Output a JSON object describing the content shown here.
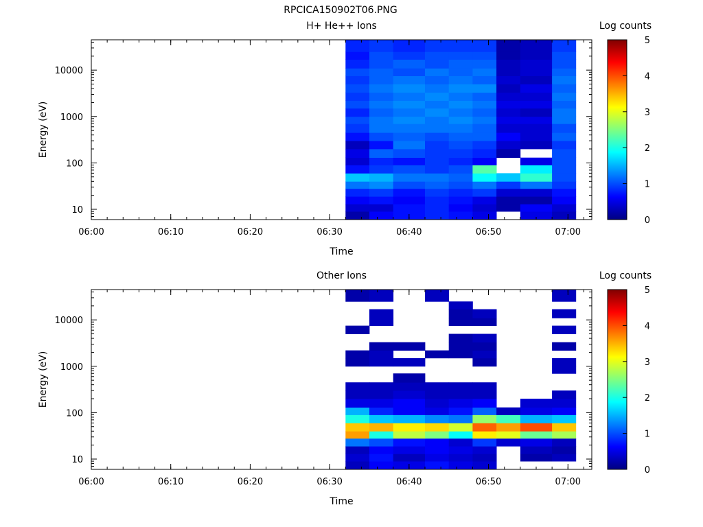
{
  "figure_title": "RPCICA150902T06.PNG",
  "colors": {
    "jet_stops": [
      "#000080",
      "#0000ff",
      "#00ffff",
      "#ffff00",
      "#ff0000",
      "#800000"
    ],
    "axis": "#000000",
    "background": "#ffffff"
  },
  "chart_data": [
    {
      "type": "heatmap",
      "title": "H+ He++ Ions",
      "xlabel": "Time",
      "ylabel": "Energy (eV)",
      "yscale": "log",
      "x_range": [
        "06:00",
        "07:03"
      ],
      "ylim": [
        6,
        45000
      ],
      "xticks": [
        "06:00",
        "06:10",
        "06:20",
        "06:30",
        "06:40",
        "06:50",
        "07:00"
      ],
      "yticks": [
        "10",
        "100",
        "1000",
        "10000"
      ],
      "colorbar": {
        "label": "Log counts",
        "range": [
          0,
          5
        ],
        "ticks": [
          "0",
          "1",
          "2",
          "3",
          "4",
          "5"
        ]
      },
      "time_bins": [
        "06:32",
        "06:35",
        "06:38",
        "06:42",
        "06:45",
        "06:48",
        "06:51",
        "06:54",
        "06:58",
        "07:01"
      ],
      "energy_bins": [
        "6-9",
        "9-13",
        "13-19",
        "19-28",
        "28-40",
        "40-60",
        "60-90",
        "90-130",
        "130-200",
        "200-300",
        "300-450",
        "450-700",
        "700-1000",
        "1000-1500",
        "1500-2200",
        "2200-3300",
        "3300-5000",
        "5000-7500",
        "7500-11000",
        "11000-17000",
        "17000-25000",
        "25000-45000"
      ],
      "log_counts": [
        [
          0.2,
          0.6,
          0.7,
          0.8,
          0.7,
          0.5,
          null,
          0.5,
          0.3
        ],
        [
          0.4,
          0.4,
          0.7,
          0.8,
          0.6,
          0.4,
          0.2,
          0.6,
          0.4
        ],
        [
          0.6,
          0.7,
          0.6,
          0.8,
          0.7,
          0.5,
          0.2,
          0.2,
          0.6
        ],
        [
          0.8,
          0.9,
          0.7,
          0.9,
          0.8,
          0.9,
          0.4,
          0.4,
          0.7
        ],
        [
          1.2,
          1.3,
          1.0,
          1.1,
          1.0,
          1.2,
          0.9,
          1.2,
          0.9
        ],
        [
          1.6,
          1.5,
          1.2,
          1.2,
          1.1,
          1.9,
          1.6,
          2.1,
          1.0
        ],
        [
          0.7,
          0.9,
          1.0,
          0.9,
          1.0,
          2.3,
          null,
          1.8,
          1.0
        ],
        [
          0.4,
          0.8,
          0.7,
          0.9,
          0.8,
          0.6,
          null,
          0.5,
          1.0
        ],
        [
          0.5,
          1.1,
          1.0,
          0.9,
          0.9,
          0.8,
          0.2,
          null,
          1.0
        ],
        [
          0.3,
          0.7,
          1.2,
          0.9,
          1.0,
          0.9,
          0.4,
          0.3,
          0.9
        ],
        [
          0.7,
          1.0,
          1.1,
          1.0,
          1.1,
          1.1,
          0.6,
          0.4,
          1.1
        ],
        [
          0.9,
          1.2,
          1.2,
          1.2,
          1.2,
          1.1,
          0.4,
          0.4,
          1.0
        ],
        [
          1.0,
          1.2,
          1.3,
          1.2,
          1.3,
          1.2,
          0.5,
          0.5,
          1.2
        ],
        [
          0.8,
          1.1,
          1.2,
          1.3,
          1.2,
          1.1,
          0.4,
          0.3,
          1.2
        ],
        [
          1.0,
          1.2,
          1.3,
          1.2,
          1.3,
          1.2,
          0.5,
          0.5,
          1.1
        ],
        [
          0.9,
          1.1,
          1.2,
          1.3,
          1.2,
          1.1,
          0.4,
          0.4,
          1.2
        ],
        [
          1.0,
          1.2,
          1.3,
          1.2,
          1.3,
          1.3,
          0.3,
          0.5,
          1.1
        ],
        [
          0.9,
          1.1,
          1.2,
          1.1,
          1.2,
          1.1,
          0.4,
          0.3,
          1.2
        ],
        [
          1.0,
          1.1,
          1.0,
          1.2,
          1.1,
          1.2,
          0.3,
          0.4,
          1.1
        ],
        [
          0.8,
          1.0,
          1.1,
          1.0,
          1.1,
          1.1,
          0.3,
          0.4,
          1.0
        ],
        [
          0.7,
          1.0,
          0.9,
          1.0,
          1.0,
          1.0,
          0.2,
          0.3,
          1.0
        ],
        [
          0.8,
          0.9,
          0.8,
          0.9,
          0.9,
          0.9,
          0.2,
          0.3,
          0.9
        ]
      ]
    },
    {
      "type": "heatmap",
      "title": "Other Ions",
      "xlabel": "Time",
      "ylabel": "Energy (eV)",
      "yscale": "log",
      "x_range": [
        "06:00",
        "07:03"
      ],
      "ylim": [
        6,
        45000
      ],
      "xticks": [
        "06:00",
        "06:10",
        "06:20",
        "06:30",
        "06:40",
        "06:50",
        "07:00"
      ],
      "yticks": [
        "10",
        "100",
        "1000",
        "10000"
      ],
      "colorbar": {
        "label": "Log counts",
        "range": [
          0,
          5
        ],
        "ticks": [
          "0",
          "1",
          "2",
          "3",
          "4",
          "5"
        ]
      },
      "time_bins": [
        "06:32",
        "06:35",
        "06:38",
        "06:42",
        "06:45",
        "06:48",
        "06:51",
        "06:54",
        "06:58",
        "07:01"
      ],
      "energy_bins": [
        "6-9",
        "9-13",
        "13-19",
        "19-28",
        "28-40",
        "40-60",
        "60-90",
        "90-130",
        "130-200",
        "200-300",
        "300-450",
        "450-700",
        "700-1000",
        "1000-1500",
        "1500-2200",
        "2200-3300",
        "3300-5000",
        "5000-7500",
        "7500-11000",
        "11000-17000",
        "17000-25000",
        "25000-45000"
      ],
      "log_counts": [
        [
          0.3,
          0.6,
          0.5,
          0.7,
          0.5,
          0.4,
          null,
          null,
          null
        ],
        [
          0.4,
          0.7,
          0.3,
          0.5,
          0.4,
          0.3,
          null,
          0.2,
          0.3
        ],
        [
          0.3,
          0.6,
          0.5,
          0.6,
          0.5,
          0.4,
          null,
          0.3,
          0.2
        ],
        [
          1.2,
          1.0,
          0.7,
          0.6,
          0.4,
          0.9,
          0.4,
          0.5,
          0.3
        ],
        [
          3.6,
          2.0,
          2.8,
          2.5,
          1.9,
          3.2,
          3.0,
          2.4,
          2.7
        ],
        [
          3.4,
          3.5,
          3.2,
          3.3,
          2.9,
          3.9,
          3.6,
          4.0,
          3.4
        ],
        [
          2.0,
          1.6,
          1.5,
          1.3,
          1.2,
          2.6,
          2.2,
          1.5,
          1.6
        ],
        [
          1.5,
          0.8,
          0.6,
          0.5,
          0.7,
          1.1,
          0.3,
          0.5,
          0.6
        ],
        [
          0.5,
          0.5,
          0.6,
          0.4,
          0.5,
          0.6,
          null,
          0.4,
          0.4
        ],
        [
          0.3,
          0.3,
          0.4,
          0.3,
          0.3,
          0.3,
          null,
          null,
          0.3
        ],
        [
          0.3,
          0.3,
          0.3,
          0.3,
          0.3,
          0.3,
          null,
          null,
          null
        ],
        [
          null,
          null,
          0.2,
          null,
          null,
          null,
          null,
          null,
          null
        ],
        [
          null,
          null,
          null,
          null,
          null,
          null,
          null,
          null,
          0.3
        ],
        [
          0.2,
          0.3,
          0.3,
          null,
          null,
          0.2,
          null,
          null,
          0.3
        ],
        [
          0.2,
          0.3,
          null,
          0.2,
          0.2,
          0.3,
          null,
          null,
          null
        ],
        [
          null,
          0.2,
          0.2,
          null,
          0.2,
          0.2,
          null,
          null,
          0.2
        ],
        [
          null,
          null,
          null,
          null,
          0.2,
          0.3,
          null,
          null,
          null
        ],
        [
          0.2,
          null,
          null,
          null,
          null,
          null,
          null,
          null,
          0.3
        ],
        [
          null,
          0.3,
          null,
          null,
          0.2,
          0.2,
          null,
          null,
          null
        ],
        [
          null,
          0.3,
          null,
          null,
          0.2,
          0.3,
          null,
          null,
          0.3
        ],
        [
          null,
          null,
          null,
          null,
          0.3,
          null,
          null,
          null,
          null
        ],
        [
          0.2,
          0.3,
          null,
          0.3,
          null,
          null,
          null,
          null,
          0.3
        ]
      ]
    }
  ]
}
